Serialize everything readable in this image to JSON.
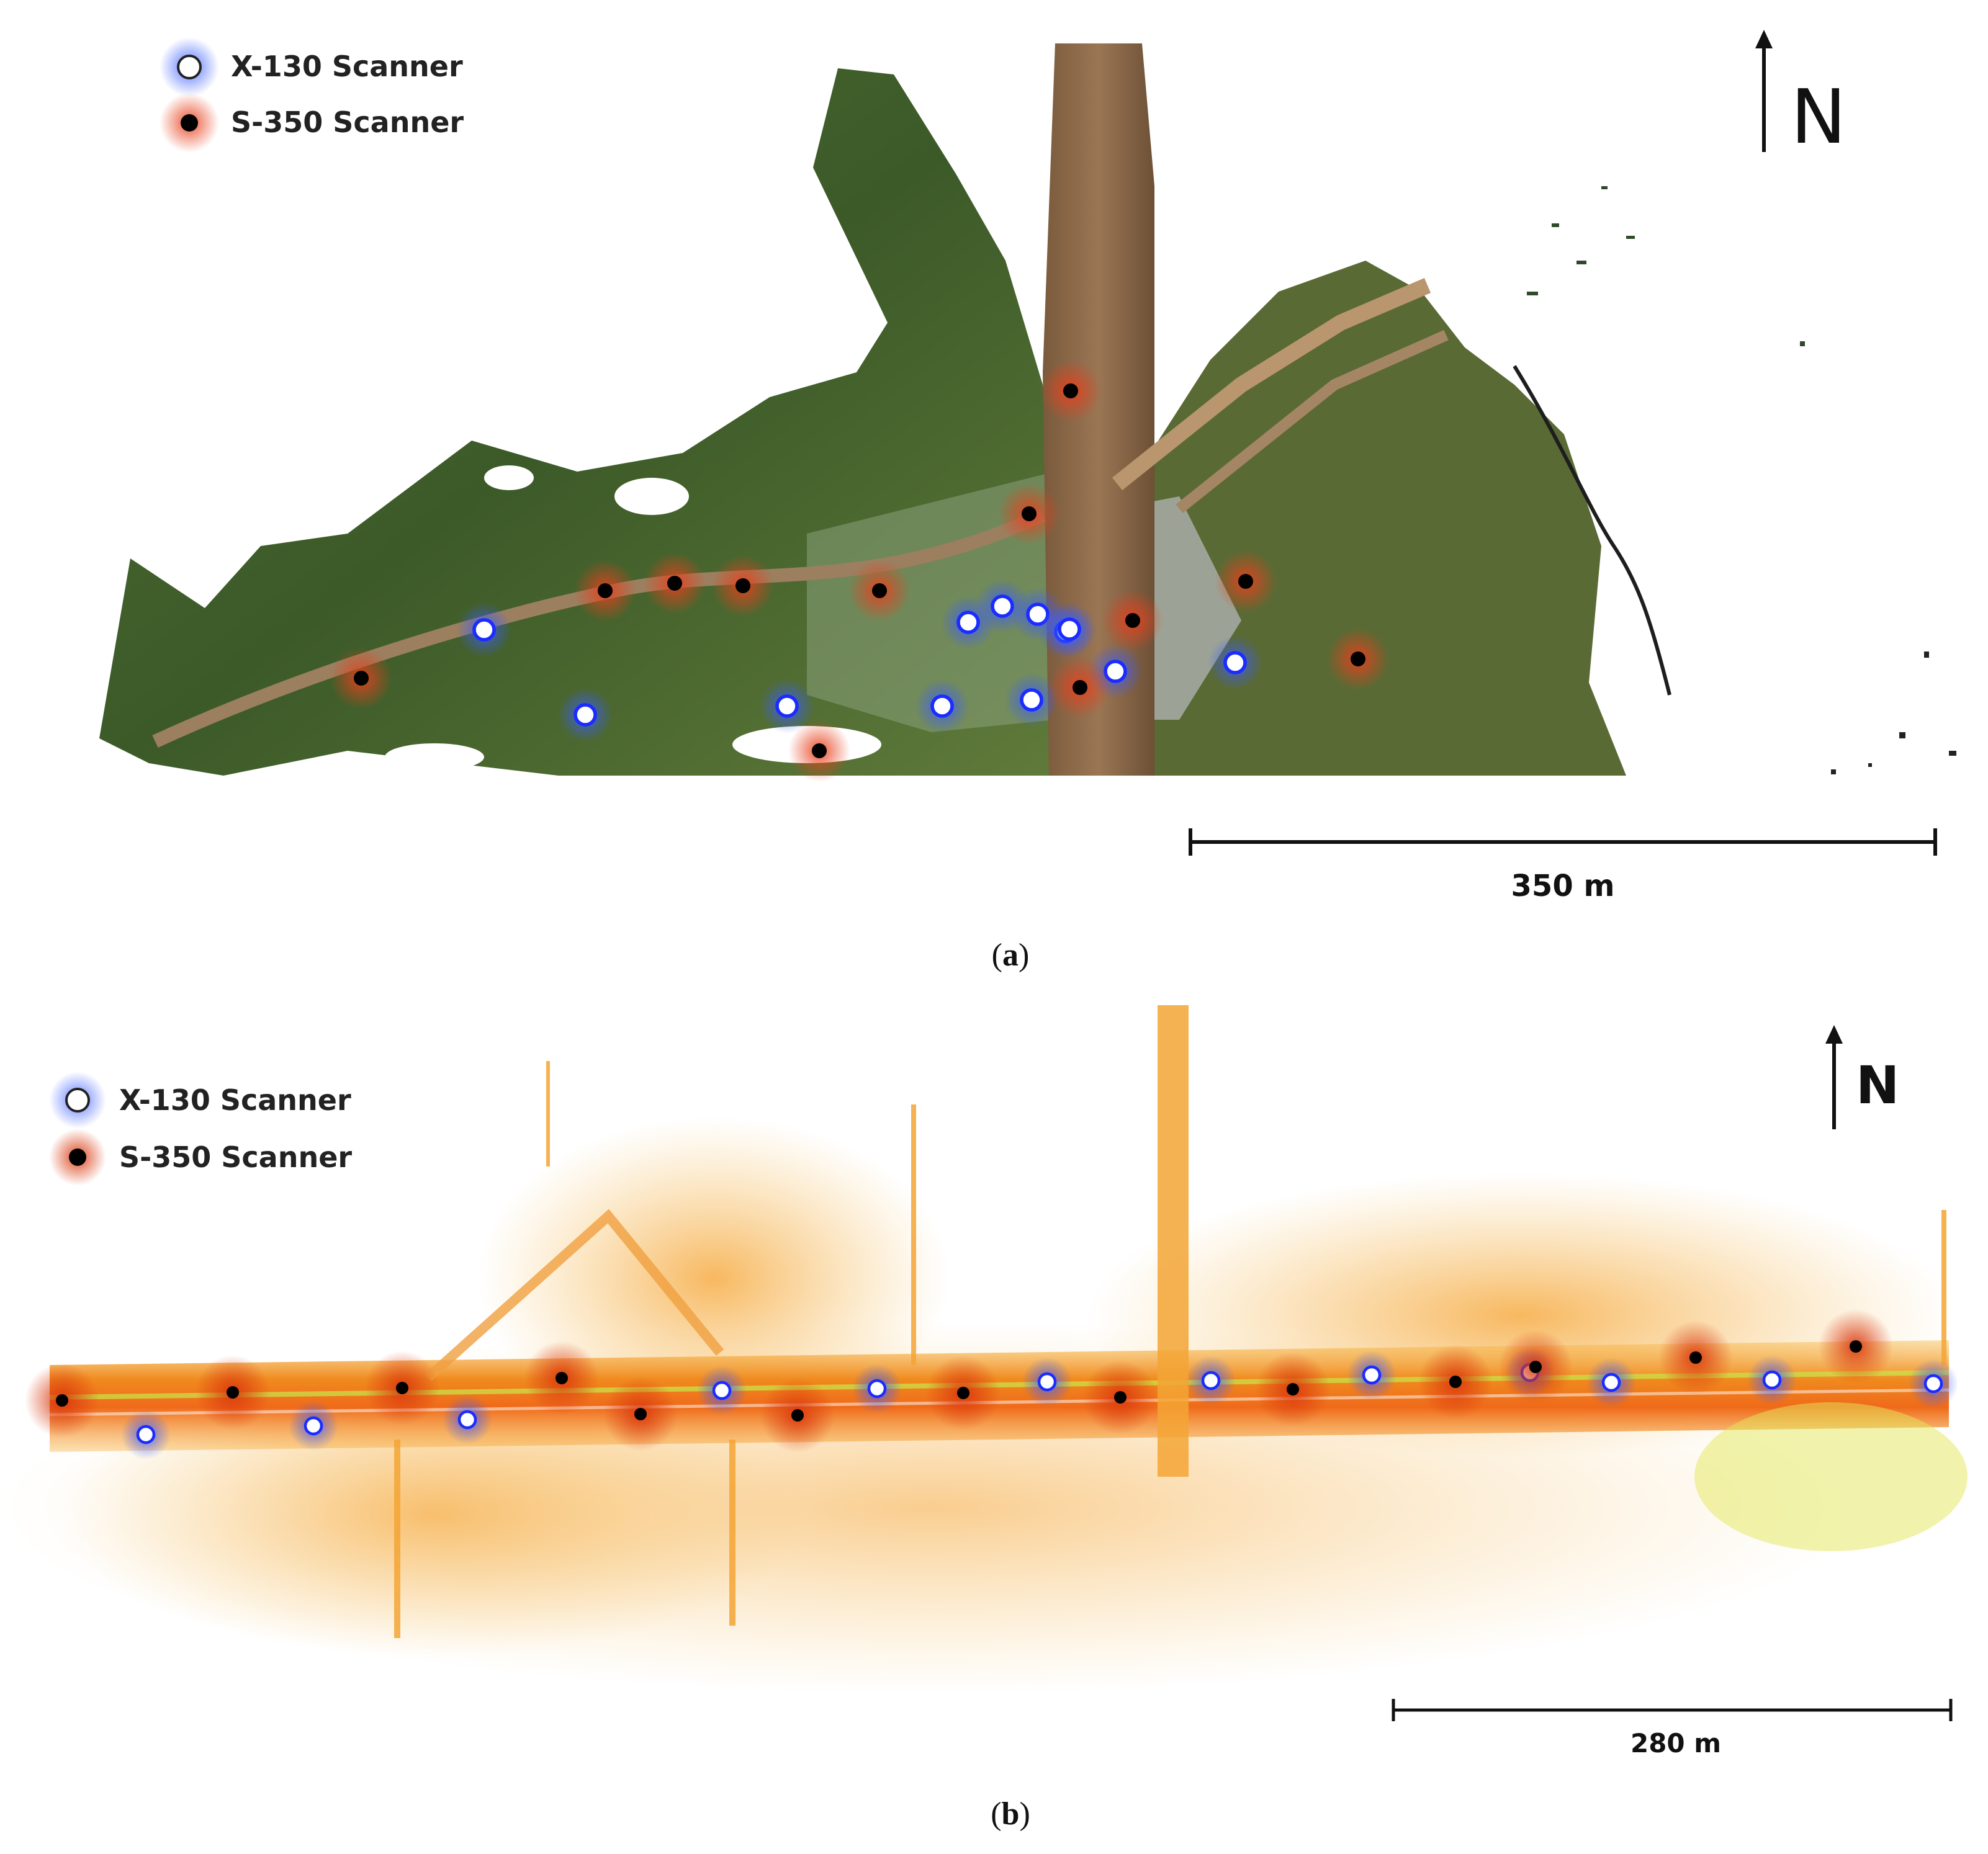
{
  "panels": [
    {
      "id": "a",
      "caption_open": "(",
      "caption_letter": "a",
      "caption_close": ")",
      "legend": [
        {
          "label": "X-130 Scanner",
          "marker": "white-dot-blue-halo"
        },
        {
          "label": "S-350 Scanner",
          "marker": "black-dot-red-halo"
        }
      ],
      "north_label": "N",
      "scale_label": "350 m",
      "basemap": "photogrammetric-point-cloud",
      "colors": {
        "vegetation": "#3f5e2a",
        "road": "#8a6a48",
        "x130_halo": "#5b7cff",
        "s350_halo": "#e0552e"
      },
      "icons": [
        "north-arrow-icon",
        "scale-bar-icon"
      ],
      "x130_count": 12,
      "s350_count": 12
    },
    {
      "id": "b",
      "caption_open": "(",
      "caption_letter": "b",
      "caption_close": ")",
      "legend": [
        {
          "label": "X-130 Scanner",
          "marker": "white-dot-blue-halo"
        },
        {
          "label": "S-350 Scanner",
          "marker": "black-dot-red-halo"
        }
      ],
      "north_label": "N",
      "scale_label": "280 m",
      "basemap": "intensity-point-cloud",
      "colors": {
        "dense": "#ef6a1a",
        "mid": "#f5a623",
        "sparse": "#f7d66b",
        "highlight": "#c9e84a"
      },
      "icons": [
        "north-arrow-icon",
        "scale-bar-icon"
      ],
      "x130_count": 12,
      "s350_count": 13
    }
  ]
}
